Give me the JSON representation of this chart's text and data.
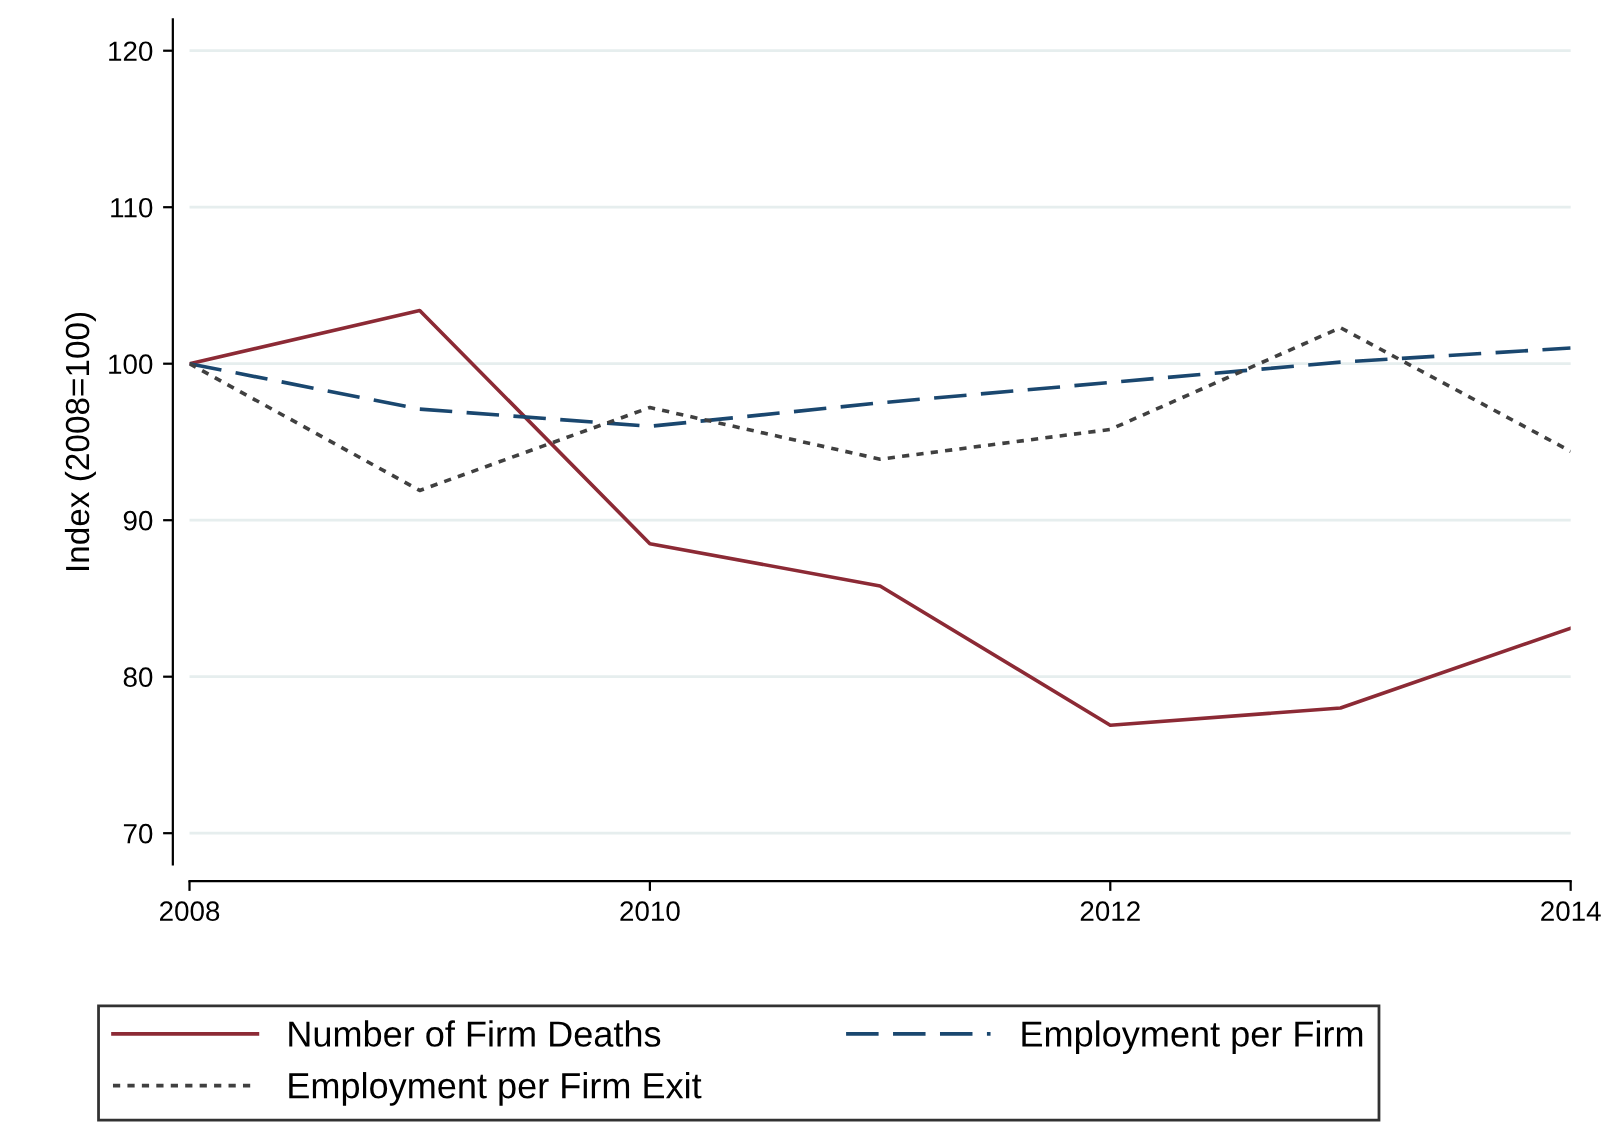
{
  "chart_data": {
    "type": "line",
    "ylabel": "Index (2008=100)",
    "x": [
      2008,
      2009,
      2010,
      2011,
      2012,
      2013,
      2014
    ],
    "xlim": [
      2008,
      2014
    ],
    "xticks": [
      2008,
      2010,
      2012,
      2014
    ],
    "ylim": [
      68,
      122
    ],
    "yticks": [
      70,
      80,
      90,
      100,
      110,
      120
    ],
    "grid": "y",
    "legend": "bottom",
    "series": [
      {
        "name": "Number of Firm Deaths",
        "color": "#8c2a35",
        "line_style": "solid",
        "values": [
          100,
          103.4,
          88.5,
          85.8,
          76.9,
          78.0,
          83.1
        ]
      },
      {
        "name": "Employment per Firm",
        "color": "#1a476f",
        "line_style": "dashed",
        "values": [
          100,
          97.1,
          96.0,
          97.5,
          98.8,
          100.1,
          101.0
        ]
      },
      {
        "name": "Employment per Firm Exit",
        "color": "#404040",
        "line_style": "dotted",
        "values": [
          100,
          91.9,
          97.2,
          93.9,
          95.8,
          102.3,
          94.4
        ]
      }
    ]
  }
}
